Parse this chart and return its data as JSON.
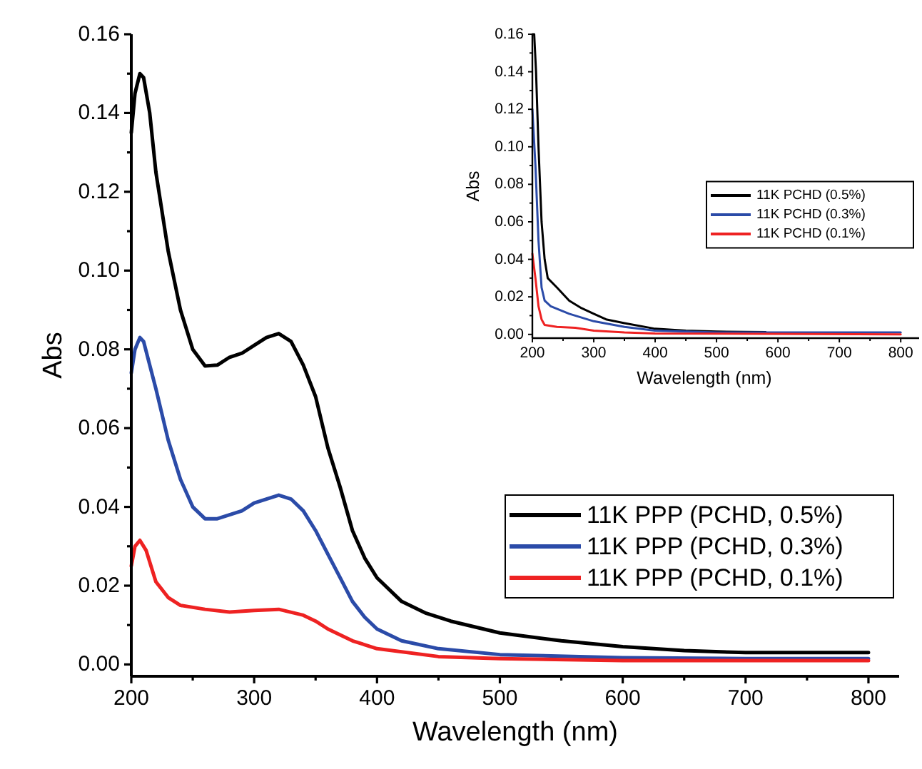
{
  "chart_data": [
    {
      "type": "line",
      "xlabel": "Wavelength (nm)",
      "ylabel": "Abs",
      "xlim": [
        200,
        825
      ],
      "ylim": [
        -0.003,
        0.16
      ],
      "xticks": [
        200,
        {
          "value": 250,
          "label": null
        },
        300,
        {
          "value": 350,
          "label": null
        },
        400,
        {
          "value": 450,
          "label": null
        },
        500,
        {
          "value": 550,
          "label": null
        },
        600,
        {
          "value": 650,
          "label": null
        },
        700,
        {
          "value": 750,
          "label": null
        },
        800
      ],
      "yticks": [
        {
          "value": 0,
          "label": "0.00"
        },
        {
          "value": 0.01,
          "label": null
        },
        {
          "value": 0.02,
          "label": "0.02"
        },
        {
          "value": 0.03,
          "label": null
        },
        {
          "value": 0.04,
          "label": "0.04"
        },
        {
          "value": 0.05,
          "label": null
        },
        {
          "value": 0.06,
          "label": "0.06"
        },
        {
          "value": 0.07,
          "label": null
        },
        {
          "value": 0.08,
          "label": "0.08"
        },
        {
          "value": 0.09,
          "label": null
        },
        {
          "value": 0.1,
          "label": "0.10"
        },
        {
          "value": 0.11,
          "label": null
        },
        {
          "value": 0.12,
          "label": "0.12"
        },
        {
          "value": 0.13,
          "label": null
        },
        {
          "value": 0.14,
          "label": "0.14"
        },
        {
          "value": 0.15,
          "label": null
        },
        {
          "value": 0.16,
          "label": "0.16"
        }
      ],
      "legend": "bottom right",
      "grid": false,
      "line_style": "solid",
      "marker": "none",
      "series": [
        {
          "name": "11K PPP (PCHD, 0.5%)",
          "color": "#000000",
          "x": [
            200,
            203,
            207,
            210,
            215,
            220,
            230,
            240,
            250,
            260,
            270,
            280,
            290,
            300,
            310,
            320,
            330,
            340,
            350,
            360,
            370,
            380,
            390,
            400,
            420,
            440,
            460,
            500,
            550,
            600,
            650,
            700,
            750,
            800
          ],
          "values": [
            0.135,
            0.145,
            0.15,
            0.149,
            0.14,
            0.125,
            0.105,
            0.09,
            0.08,
            0.0758,
            0.076,
            0.078,
            0.079,
            0.081,
            0.083,
            0.084,
            0.082,
            0.076,
            0.068,
            0.055,
            0.045,
            0.034,
            0.027,
            0.022,
            0.016,
            0.013,
            0.011,
            0.008,
            0.006,
            0.0045,
            0.0035,
            0.003,
            0.003,
            0.003
          ]
        },
        {
          "name": "11K PPP (PCHD, 0.3%)",
          "color": "#2b4ba8",
          "x": [
            200,
            203,
            207,
            210,
            220,
            230,
            240,
            250,
            260,
            270,
            280,
            290,
            300,
            310,
            320,
            330,
            340,
            350,
            360,
            370,
            380,
            390,
            400,
            420,
            450,
            500,
            600,
            700,
            800
          ],
          "values": [
            0.074,
            0.08,
            0.083,
            0.082,
            0.07,
            0.057,
            0.047,
            0.04,
            0.037,
            0.037,
            0.038,
            0.039,
            0.041,
            0.042,
            0.043,
            0.042,
            0.039,
            0.034,
            0.028,
            0.022,
            0.016,
            0.012,
            0.009,
            0.006,
            0.004,
            0.0025,
            0.0017,
            0.0015,
            0.0015
          ]
        },
        {
          "name": "11K PPP (PCHD, 0.1%)",
          "color": "#ee2222",
          "x": [
            200,
            203,
            207,
            212,
            220,
            230,
            240,
            260,
            280,
            300,
            320,
            340,
            350,
            360,
            380,
            400,
            450,
            500,
            600,
            800
          ],
          "values": [
            0.025,
            0.03,
            0.0315,
            0.029,
            0.021,
            0.017,
            0.015,
            0.014,
            0.0133,
            0.0137,
            0.014,
            0.0125,
            0.011,
            0.009,
            0.006,
            0.004,
            0.002,
            0.0015,
            0.001,
            0.001
          ]
        }
      ]
    },
    {
      "type": "line",
      "xlabel": "Wavelength (nm)",
      "ylabel": "Abs",
      "xlim": [
        200,
        830
      ],
      "ylim": [
        -0.002,
        0.16
      ],
      "xticks": [
        200,
        {
          "value": 250,
          "label": null
        },
        300,
        {
          "value": 350,
          "label": null
        },
        400,
        {
          "value": 450,
          "label": null
        },
        500,
        {
          "value": 550,
          "label": null
        },
        600,
        {
          "value": 650,
          "label": null
        },
        700,
        {
          "value": 750,
          "label": null
        },
        800
      ],
      "yticks": [
        {
          "value": 0,
          "label": "0.00"
        },
        {
          "value": 0.01,
          "label": null
        },
        {
          "value": 0.02,
          "label": "0.02"
        },
        {
          "value": 0.03,
          "label": null
        },
        {
          "value": 0.04,
          "label": "0.04"
        },
        {
          "value": 0.05,
          "label": null
        },
        {
          "value": 0.06,
          "label": "0.06"
        },
        {
          "value": 0.07,
          "label": null
        },
        {
          "value": 0.08,
          "label": "0.08"
        },
        {
          "value": 0.09,
          "label": null
        },
        {
          "value": 0.1,
          "label": "0.10"
        },
        {
          "value": 0.11,
          "label": null
        },
        {
          "value": 0.12,
          "label": "0.12"
        },
        {
          "value": 0.13,
          "label": null
        },
        {
          "value": 0.14,
          "label": "0.14"
        },
        {
          "value": 0.15,
          "label": null
        },
        {
          "value": 0.16,
          "label": "0.16"
        }
      ],
      "legend": "right",
      "grid": false,
      "line_style": "solid",
      "marker": "none",
      "series": [
        {
          "name": "11K PCHD (0.5%)",
          "color": "#000000",
          "x": [
            200,
            203,
            206,
            210,
            215,
            220,
            225,
            240,
            260,
            280,
            300,
            320,
            350,
            400,
            450,
            500,
            580
          ],
          "values": [
            0.16,
            0.16,
            0.14,
            0.1,
            0.06,
            0.04,
            0.03,
            0.025,
            0.018,
            0.014,
            0.011,
            0.008,
            0.006,
            0.003,
            0.002,
            0.0015,
            0.0012
          ]
        },
        {
          "name": "11K PCHD (0.3%)",
          "color": "#2b4ba8",
          "x": [
            200,
            205,
            210,
            215,
            220,
            230,
            260,
            300,
            350,
            400,
            500,
            800
          ],
          "values": [
            0.12,
            0.09,
            0.05,
            0.025,
            0.018,
            0.015,
            0.011,
            0.007,
            0.004,
            0.002,
            0.001,
            0.001
          ]
        },
        {
          "name": "11K PCHD (0.1%)",
          "color": "#ee2222",
          "x": [
            200,
            205,
            210,
            215,
            220,
            240,
            270,
            300,
            350,
            400,
            800
          ],
          "values": [
            0.043,
            0.03,
            0.015,
            0.008,
            0.005,
            0.004,
            0.0035,
            0.002,
            0.001,
            0.0005,
            0
          ]
        }
      ]
    }
  ]
}
